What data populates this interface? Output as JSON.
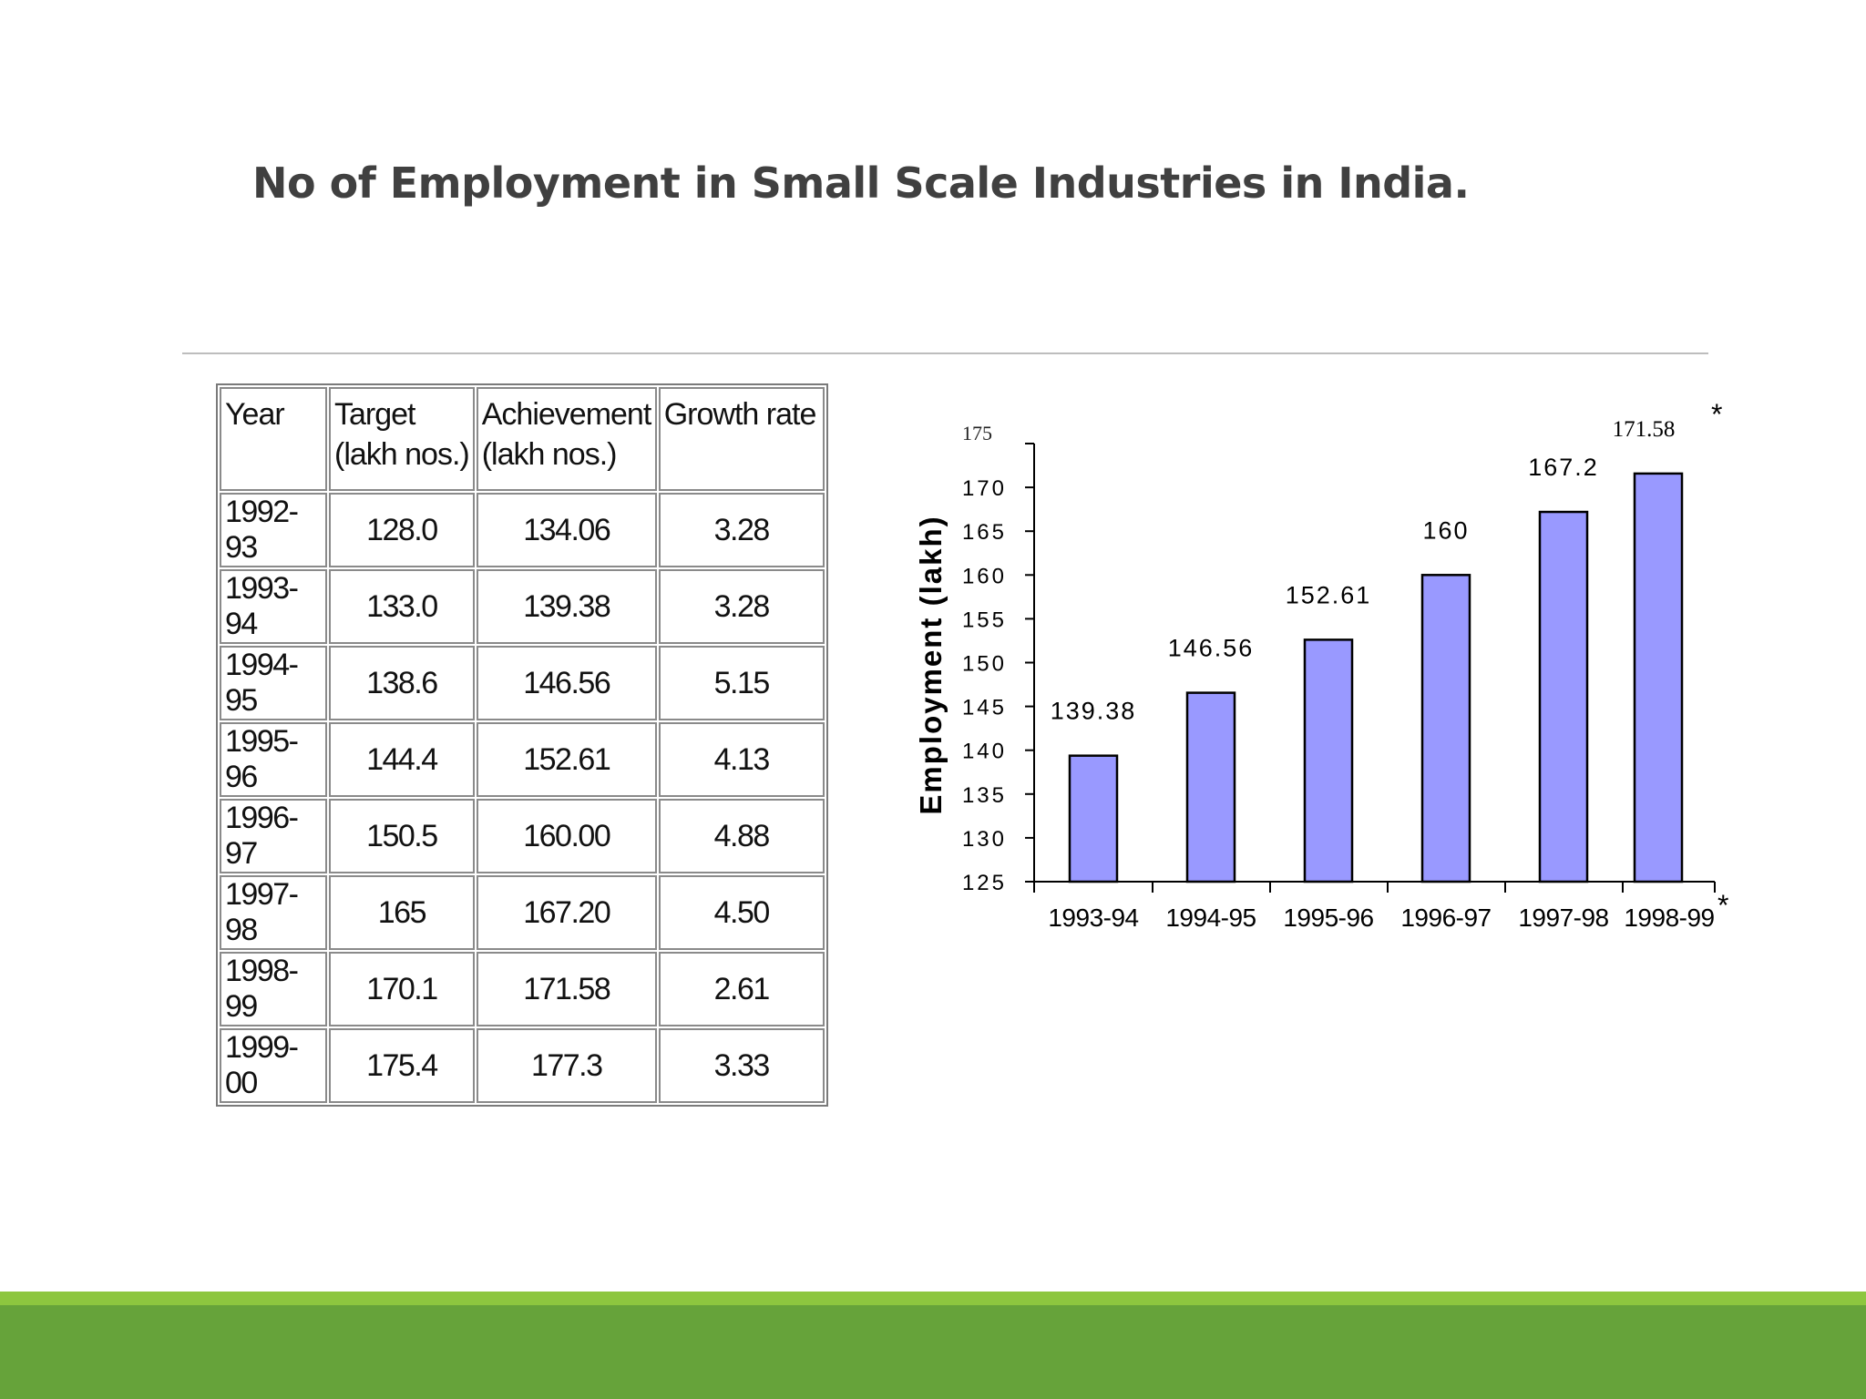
{
  "title": "No of Employment in Small Scale Industries in India.",
  "table": {
    "headers": [
      [
        "Year",
        ""
      ],
      [
        "Target",
        "(lakh nos.)"
      ],
      [
        "Achievement",
        "(lakh nos.)"
      ],
      [
        "Growth rate",
        ""
      ]
    ],
    "rows": [
      [
        "1992-93",
        "128.0",
        "134.06",
        "3.28"
      ],
      [
        "1993-94",
        "133.0",
        "139.38",
        "3.28"
      ],
      [
        "1994-95",
        "138.6",
        "146.56",
        "5.15"
      ],
      [
        "1995-96",
        "144.4",
        "152.61",
        "4.13"
      ],
      [
        "1996-97",
        "150.5",
        "160.00",
        "4.88"
      ],
      [
        "1997-98",
        "165",
        "167.20",
        "4.50"
      ],
      [
        "1998-99",
        "170.1",
        "171.58",
        "2.61"
      ],
      [
        "1999-00",
        "175.4",
        "177.3",
        "3.33"
      ]
    ]
  },
  "chart_data": {
    "type": "bar",
    "categories": [
      "1993-94",
      "1994-95",
      "1995-96",
      "1996-97",
      "1997-98",
      "1998-99"
    ],
    "values": [
      139.38,
      146.56,
      152.61,
      160,
      167.2,
      171.58
    ],
    "data_labels": [
      "139.38",
      "146.56",
      "152.61",
      "160",
      "167.2",
      "171.58"
    ],
    "last_label_marker": "*",
    "last_category_marker": "*",
    "title": "",
    "xlabel": "",
    "ylabel": "Employment (lakh)",
    "ylim": [
      125,
      175
    ],
    "yticks": [
      125,
      130,
      135,
      140,
      145,
      150,
      155,
      160,
      165,
      170
    ],
    "top_tick_label": "175",
    "bar_color": "#9999ff",
    "grid": false,
    "legend": "none"
  },
  "colors": {
    "title": "#404040",
    "footer_light": "#8dc63f",
    "footer_dark": "#66a33a",
    "axis": "#000000"
  }
}
